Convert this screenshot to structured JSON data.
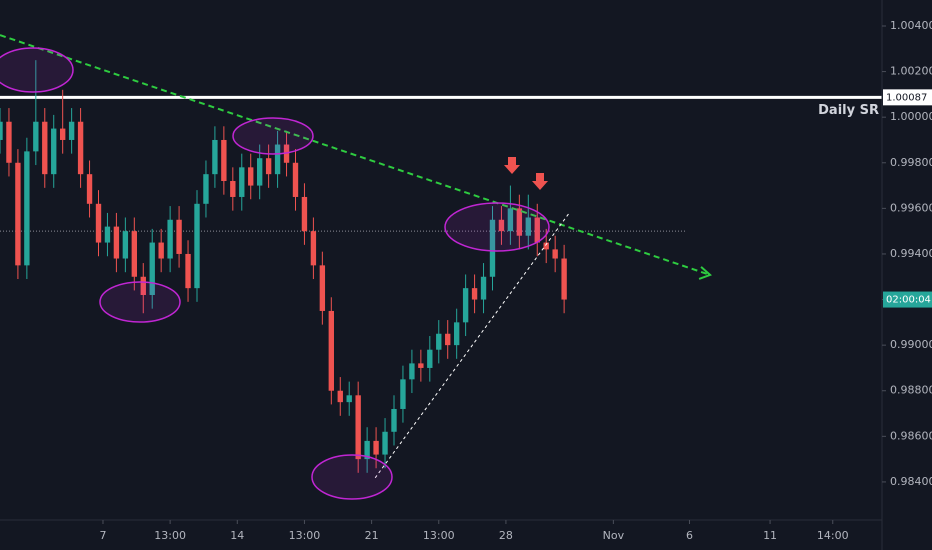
{
  "chart_data": {
    "type": "candlestick",
    "up_color": "#26a69a",
    "down_color": "#ef5350",
    "grid": false,
    "xlim": [
      0,
      197
    ],
    "ylim": [
      0.98233,
      1.00514
    ],
    "xticks": [
      {
        "value": 23,
        "label": "7"
      },
      {
        "value": 38,
        "label": "13:00"
      },
      {
        "value": 53,
        "label": "14"
      },
      {
        "value": 68,
        "label": "13:00"
      },
      {
        "value": 83,
        "label": "21"
      },
      {
        "value": 98,
        "label": "13:00"
      },
      {
        "value": 113,
        "label": "28"
      },
      {
        "value": 137,
        "label": "Nov"
      },
      {
        "value": 154,
        "label": "6"
      },
      {
        "value": 172,
        "label": "11"
      },
      {
        "value": 186,
        "label": "14:00"
      }
    ],
    "yticks": [
      {
        "value": 0.984,
        "label": "0.98400"
      },
      {
        "value": 0.986,
        "label": "0.98600"
      },
      {
        "value": 0.988,
        "label": "0.98800"
      },
      {
        "value": 0.99,
        "label": "0.99000"
      },
      {
        "value": 0.992,
        "label": "0.99200"
      },
      {
        "value": 0.994,
        "label": "0.99400"
      },
      {
        "value": 0.996,
        "label": "0.99600"
      },
      {
        "value": 0.998,
        "label": "0.99800"
      },
      {
        "value": 1.0,
        "label": "1.00000"
      },
      {
        "value": 1.002,
        "label": "1.00200"
      },
      {
        "value": 1.004,
        "label": "1.00400"
      }
    ],
    "x": [
      0,
      2,
      4,
      6,
      8,
      10,
      12,
      14,
      16,
      18,
      20,
      22,
      24,
      26,
      28,
      30,
      32,
      34,
      36,
      38,
      40,
      42,
      44,
      46,
      48,
      50,
      52,
      54,
      56,
      58,
      60,
      62,
      64,
      66,
      68,
      70,
      72,
      74,
      76,
      78,
      80,
      82,
      84,
      86,
      88,
      90,
      92,
      94,
      96,
      98,
      100,
      102,
      104,
      106,
      108,
      110,
      112,
      114,
      116,
      118,
      120,
      122,
      124,
      126
    ],
    "open": [
      0.999,
      0.9998,
      0.998,
      0.9935,
      0.9985,
      0.9998,
      0.9975,
      0.9995,
      0.999,
      0.9998,
      0.9975,
      0.9962,
      0.9945,
      0.9952,
      0.9938,
      0.995,
      0.993,
      0.9922,
      0.9945,
      0.9938,
      0.9955,
      0.994,
      0.9925,
      0.9962,
      0.9975,
      0.999,
      0.9972,
      0.9965,
      0.9978,
      0.997,
      0.9982,
      0.9975,
      0.9988,
      0.998,
      0.9965,
      0.995,
      0.9935,
      0.9915,
      0.988,
      0.9875,
      0.9878,
      0.985,
      0.9858,
      0.9852,
      0.9862,
      0.9872,
      0.9885,
      0.9892,
      0.989,
      0.9898,
      0.9905,
      0.99,
      0.991,
      0.9925,
      0.992,
      0.993,
      0.9955,
      0.995,
      0.996,
      0.9948,
      0.9956,
      0.9945,
      0.9942,
      0.9938
    ],
    "high": [
      1.0004,
      1.0004,
      0.9986,
      0.9991,
      1.0025,
      1.0004,
      1.0001,
      1.0012,
      1.0004,
      1.0004,
      0.9981,
      0.9968,
      0.9958,
      0.9958,
      0.9956,
      0.9956,
      0.9936,
      0.9951,
      0.9951,
      0.9961,
      0.9961,
      0.9946,
      0.9968,
      0.9981,
      0.9996,
      0.9996,
      0.9978,
      0.9984,
      0.9984,
      0.9988,
      0.9988,
      0.9994,
      0.9994,
      0.9986,
      0.9971,
      0.9956,
      0.9941,
      0.9921,
      0.9886,
      0.9884,
      0.9884,
      0.9864,
      0.9864,
      0.9868,
      0.9878,
      0.9891,
      0.9898,
      0.9898,
      0.9904,
      0.9911,
      0.9911,
      0.9916,
      0.9931,
      0.9931,
      0.9936,
      0.9961,
      0.9961,
      0.997,
      0.9966,
      0.9966,
      0.9962,
      0.9951,
      0.9948,
      0.9944
    ],
    "low": [
      0.9984,
      0.9974,
      0.9929,
      0.9929,
      0.9979,
      0.9969,
      0.9969,
      0.9984,
      0.9984,
      0.9969,
      0.9956,
      0.9939,
      0.9939,
      0.9932,
      0.9932,
      0.9924,
      0.9914,
      0.9916,
      0.9932,
      0.9932,
      0.9934,
      0.9919,
      0.9919,
      0.9956,
      0.9969,
      0.9966,
      0.9959,
      0.9959,
      0.9964,
      0.9964,
      0.9969,
      0.9969,
      0.9974,
      0.9959,
      0.9944,
      0.9929,
      0.9909,
      0.9874,
      0.9869,
      0.9869,
      0.9844,
      0.9844,
      0.9846,
      0.9846,
      0.9856,
      0.9866,
      0.9879,
      0.9884,
      0.9884,
      0.9892,
      0.9894,
      0.9894,
      0.9904,
      0.9914,
      0.9914,
      0.9924,
      0.9944,
      0.9944,
      0.9942,
      0.9942,
      0.9939,
      0.9936,
      0.9932,
      0.9914
    ],
    "close": [
      0.9998,
      0.998,
      0.9935,
      0.9985,
      0.9998,
      0.9975,
      0.9995,
      0.999,
      0.9998,
      0.9975,
      0.9962,
      0.9945,
      0.9952,
      0.9938,
      0.995,
      0.993,
      0.9922,
      0.9945,
      0.9938,
      0.9955,
      0.994,
      0.9925,
      0.9962,
      0.9975,
      0.999,
      0.9972,
      0.9965,
      0.9978,
      0.997,
      0.9982,
      0.9975,
      0.9988,
      0.998,
      0.9965,
      0.995,
      0.9935,
      0.9915,
      0.988,
      0.9875,
      0.9878,
      0.985,
      0.9858,
      0.9852,
      0.9862,
      0.9872,
      0.9885,
      0.9892,
      0.989,
      0.9898,
      0.9905,
      0.99,
      0.991,
      0.9925,
      0.992,
      0.993,
      0.9955,
      0.995,
      0.996,
      0.9948,
      0.9956,
      0.9945,
      0.9942,
      0.9938,
      0.992
    ],
    "levels": [
      {
        "name": "Daily SR",
        "value": 1.00087,
        "color": "#ffffff"
      },
      {
        "value": 0.995,
        "x_end": 153,
        "color": "#8a8d96"
      }
    ],
    "trendlines": [
      {
        "x": [
          0,
          158.6
        ],
        "y": [
          1.0036,
          0.99308
        ],
        "color": "#2ecc40"
      },
      {
        "x": [
          83.8,
          127.3
        ],
        "y": [
          0.98418,
          0.99584
        ],
        "color": "#ffffff"
      }
    ],
    "countdown": "02:00:04"
  }
}
